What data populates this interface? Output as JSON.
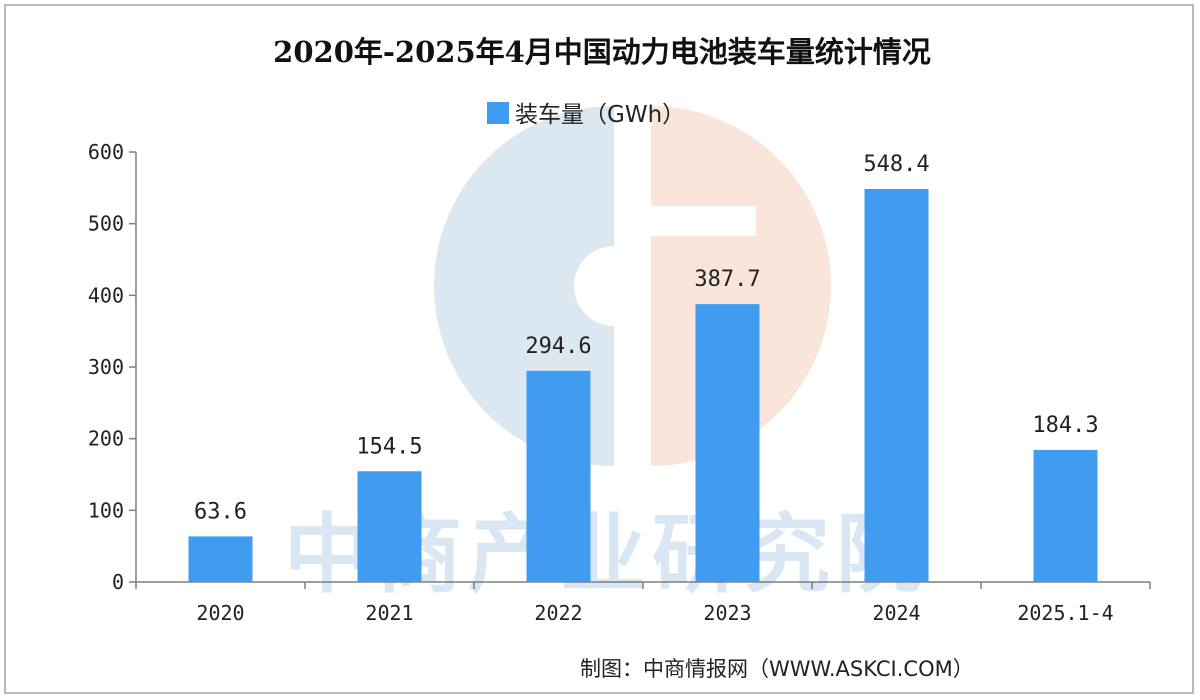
{
  "chart_data": {
    "type": "bar",
    "title": "2020年-2025年4月中国动力电池装车量统计情况",
    "legend": "装车量（GWh）",
    "categories": [
      "2020",
      "2021",
      "2022",
      "2023",
      "2024",
      "2025.1-4"
    ],
    "values": [
      63.6,
      154.5,
      294.6,
      387.7,
      548.4,
      184.3
    ],
    "value_labels": [
      "63.6",
      "154.5",
      "294.6",
      "387.7",
      "548.4",
      "184.3"
    ],
    "ylim": [
      0,
      600
    ],
    "yticks": [
      "0",
      "100",
      "200",
      "300",
      "400",
      "500",
      "600"
    ],
    "legend_position": "top-center",
    "grid": false
  },
  "source": "制图：中商情报网（WWW.ASKCI.COM）",
  "watermark": {
    "text": "中商产业研究院"
  },
  "colors": {
    "bar": "#3f9cf0",
    "axis": "#7f7f7f",
    "watermark_blue": "#cfe0ee",
    "watermark_peach": "#f7dccd"
  }
}
